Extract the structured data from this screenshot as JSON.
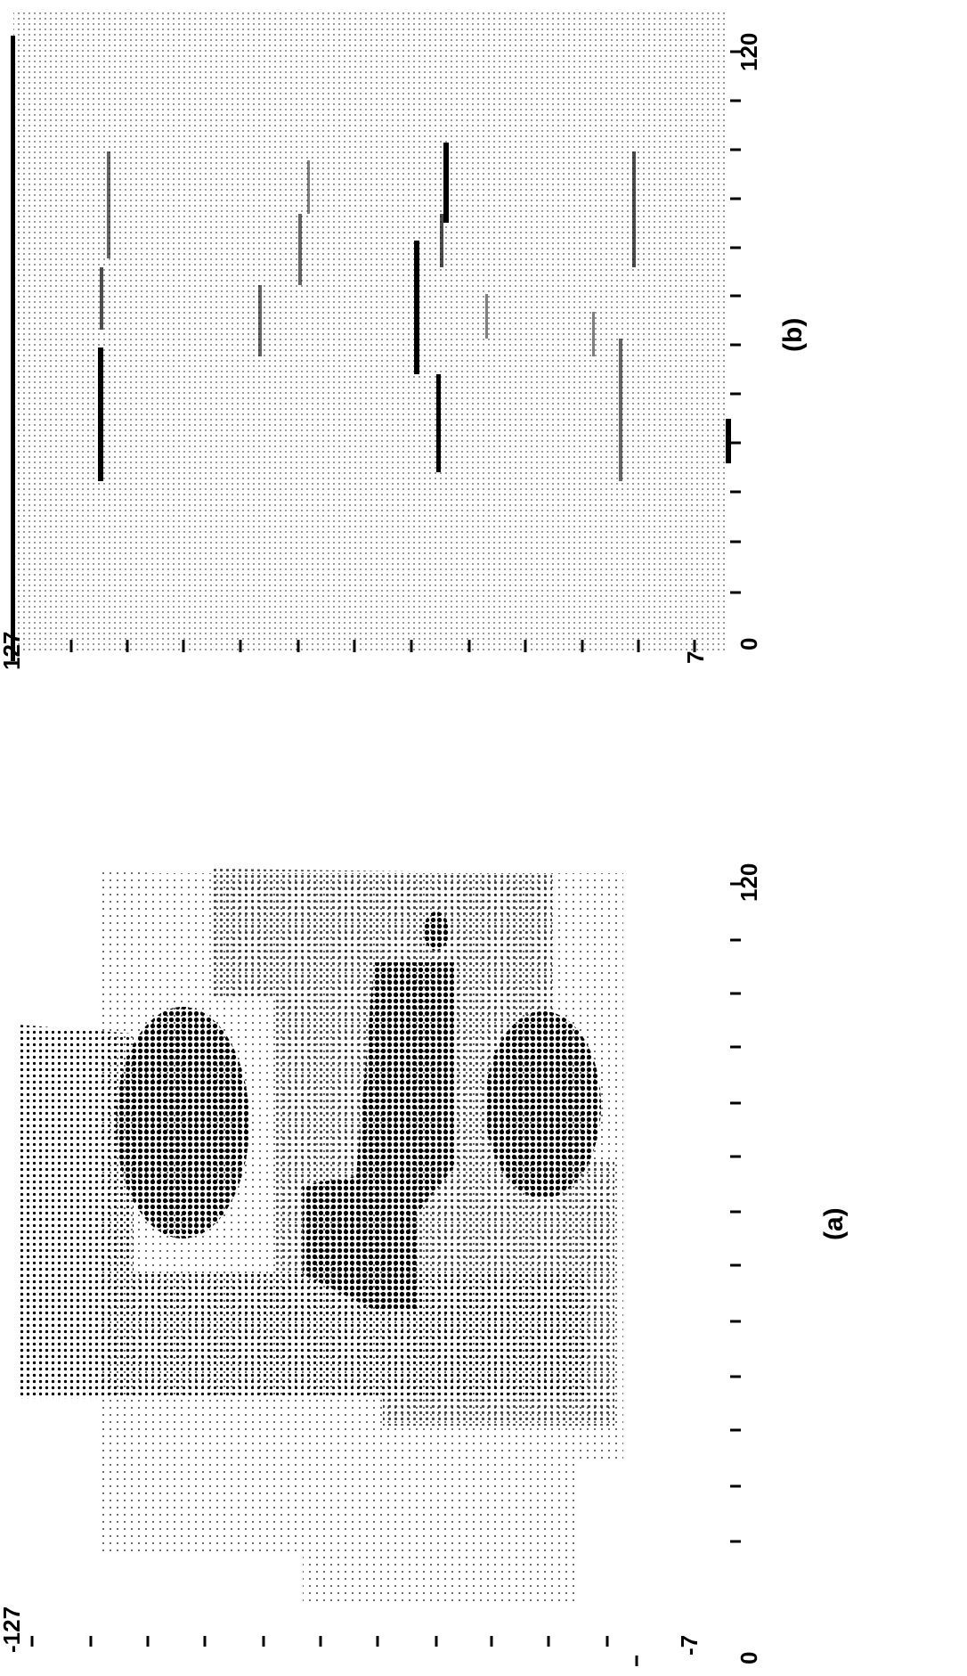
{
  "panels": [
    {
      "id": "a",
      "caption": "(a)",
      "axis_top_value": "-127",
      "axis_mid_value": "-7",
      "axis_bottom_value": "0",
      "axis_right_value": "120"
    },
    {
      "id": "b",
      "caption": "(b)",
      "axis_top_value": "127",
      "axis_mid_value": "7",
      "axis_bottom_value": "0",
      "axis_right_value": "120"
    }
  ],
  "colors": {
    "ink": "#000000",
    "paper": "#ffffff"
  }
}
